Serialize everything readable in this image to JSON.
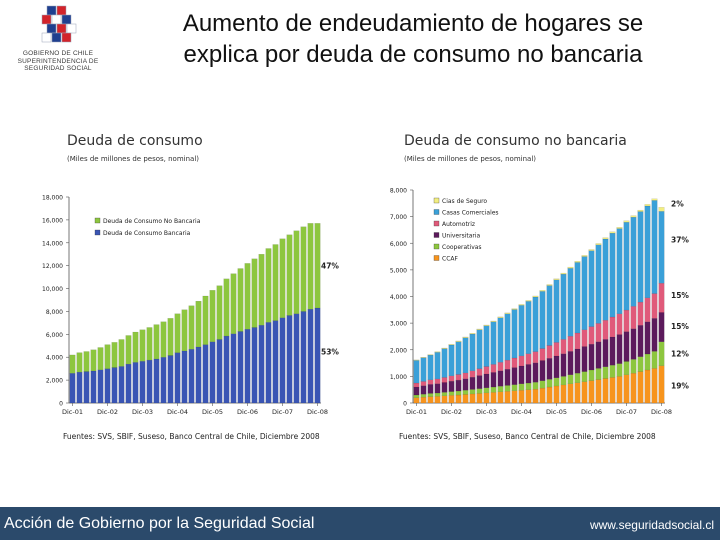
{
  "logo": {
    "lines": [
      "GOBIERNO DE CHILE",
      "SUPERINTENDENCIA DE",
      "SEGURIDAD SOCIAL"
    ],
    "colors": {
      "blue": "#1f3f8f",
      "red": "#d2232a",
      "white": "#ffffff"
    }
  },
  "slide": {
    "title_line1": "Aumento de endeudamiento de hogares se",
    "title_line2": "explica por deuda de consumo no bancaria"
  },
  "footer": {
    "left": "Acción de Gobierno por la Seguridad Social",
    "right": "www.seguridadsocial.cl",
    "color": "#2b4a6b"
  },
  "chart_data": [
    {
      "type": "bar",
      "stacked": true,
      "title": "Deuda de consumo",
      "subtitle": "(Miles de millones de pesos, nominal)",
      "source": "Fuentes: SVS, SBIF, Suseso, Banco Central de Chile, Diciembre 2008",
      "ylim": [
        0,
        18000
      ],
      "yticks": [
        0,
        2000,
        4000,
        6000,
        8000,
        10000,
        12000,
        14000,
        16000,
        18000
      ],
      "ytick_labels": [
        "0",
        "2,000",
        "4,000",
        "6,000",
        "8,000",
        "10,000",
        "12,000",
        "14,000",
        "16,000",
        "18,000"
      ],
      "xtick_labels": [
        "Dic-01",
        "Dic-02",
        "Dic-03",
        "Dic-04",
        "Dic-05",
        "Dic-06",
        "Dic-07",
        "Dic-08"
      ],
      "legend_position": "top-left",
      "annotations": [
        "47%",
        "53%"
      ],
      "series": [
        {
          "name": "Deuda de Consumo Bancaria",
          "color": "#3a55b4",
          "values": [
            2600,
            2700,
            2750,
            2800,
            2900,
            3000,
            3100,
            3200,
            3400,
            3550,
            3650,
            3750,
            3850,
            4000,
            4150,
            4400,
            4550,
            4700,
            4900,
            5100,
            5350,
            5550,
            5850,
            6050,
            6250,
            6450,
            6600,
            6800,
            7050,
            7200,
            7450,
            7650,
            7800,
            8000,
            8200,
            8300
          ]
        },
        {
          "name": "Deuda de Consumo No Bancaria",
          "color": "#8dc63f",
          "values": [
            1600,
            1700,
            1750,
            1850,
            1950,
            2100,
            2200,
            2350,
            2500,
            2650,
            2750,
            2850,
            3000,
            3100,
            3250,
            3400,
            3600,
            3800,
            4000,
            4250,
            4500,
            4700,
            5000,
            5250,
            5500,
            5750,
            6000,
            6200,
            6450,
            6650,
            6900,
            7050,
            7250,
            7400,
            7500,
            7400
          ]
        }
      ]
    },
    {
      "type": "bar",
      "stacked": true,
      "title": "Deuda de consumo no bancaria",
      "subtitle": "(Miles de millones de pesos, nominal)",
      "source": "Fuentes: SVS, SBIF, Suseso, Banco Central de Chile, Diciembre 2008",
      "ylim": [
        0,
        8000
      ],
      "yticks": [
        0,
        1000,
        2000,
        3000,
        4000,
        5000,
        6000,
        7000,
        8000
      ],
      "ytick_labels": [
        "0",
        "1,000",
        "2,000",
        "3,000",
        "4,000",
        "5,000",
        "6,000",
        "7,000",
        "8,000"
      ],
      "xtick_labels": [
        "Dic-01",
        "Dic-02",
        "Dic-03",
        "Dic-04",
        "Dic-05",
        "Dic-06",
        "Dic-07",
        "Dic-08"
      ],
      "legend_position": "top-left",
      "annotations": [
        "2%",
        "37%",
        "15%",
        "15%",
        "12%",
        "19%"
      ],
      "series": [
        {
          "name": "CCAF",
          "color": "#f7941d",
          "values": [
            200,
            220,
            240,
            250,
            270,
            290,
            300,
            320,
            340,
            360,
            380,
            400,
            420,
            440,
            460,
            480,
            500,
            520,
            560,
            600,
            640,
            680,
            720,
            760,
            800,
            840,
            880,
            920,
            960,
            1000,
            1060,
            1120,
            1180,
            1240,
            1300,
            1400
          ]
        },
        {
          "name": "Cooperativas",
          "color": "#8dc63f",
          "values": [
            100,
            110,
            120,
            125,
            130,
            140,
            150,
            160,
            170,
            180,
            190,
            200,
            210,
            220,
            230,
            240,
            250,
            260,
            275,
            290,
            305,
            320,
            340,
            360,
            380,
            400,
            420,
            440,
            460,
            480,
            500,
            520,
            560,
            600,
            640,
            900
          ]
        },
        {
          "name": "Universitaria",
          "color": "#5c1a5c",
          "values": [
            300,
            320,
            340,
            350,
            370,
            390,
            410,
            430,
            460,
            490,
            520,
            550,
            580,
            610,
            640,
            670,
            700,
            730,
            760,
            790,
            820,
            850,
            880,
            910,
            940,
            970,
            1000,
            1030,
            1060,
            1090,
            1120,
            1150,
            1180,
            1210,
            1240,
            1100
          ]
        },
        {
          "name": "Automotriz",
          "color": "#e05a7a",
          "values": [
            150,
            160,
            170,
            180,
            190,
            200,
            210,
            220,
            240,
            260,
            280,
            300,
            320,
            340,
            360,
            380,
            400,
            420,
            450,
            480,
            510,
            540,
            570,
            600,
            630,
            660,
            690,
            720,
            750,
            780,
            810,
            840,
            870,
            900,
            930,
            1100
          ]
        },
        {
          "name": "Casas Comerciales",
          "color": "#3aa0d8",
          "values": [
            850,
            890,
            930,
            1000,
            1080,
            1160,
            1230,
            1320,
            1380,
            1460,
            1530,
            1600,
            1670,
            1740,
            1820,
            1900,
            1970,
            2050,
            2150,
            2250,
            2350,
            2450,
            2550,
            2650,
            2750,
            2850,
            2950,
            3050,
            3150,
            3200,
            3300,
            3350,
            3400,
            3450,
            3500,
            2700
          ]
        },
        {
          "name": "Cias de Seguro",
          "color": "#f2ee80",
          "values": [
            20,
            20,
            20,
            25,
            25,
            25,
            30,
            30,
            30,
            30,
            30,
            30,
            35,
            35,
            35,
            35,
            35,
            40,
            40,
            40,
            40,
            40,
            45,
            45,
            45,
            45,
            50,
            50,
            50,
            50,
            55,
            55,
            55,
            60,
            60,
            150
          ]
        }
      ]
    }
  ]
}
